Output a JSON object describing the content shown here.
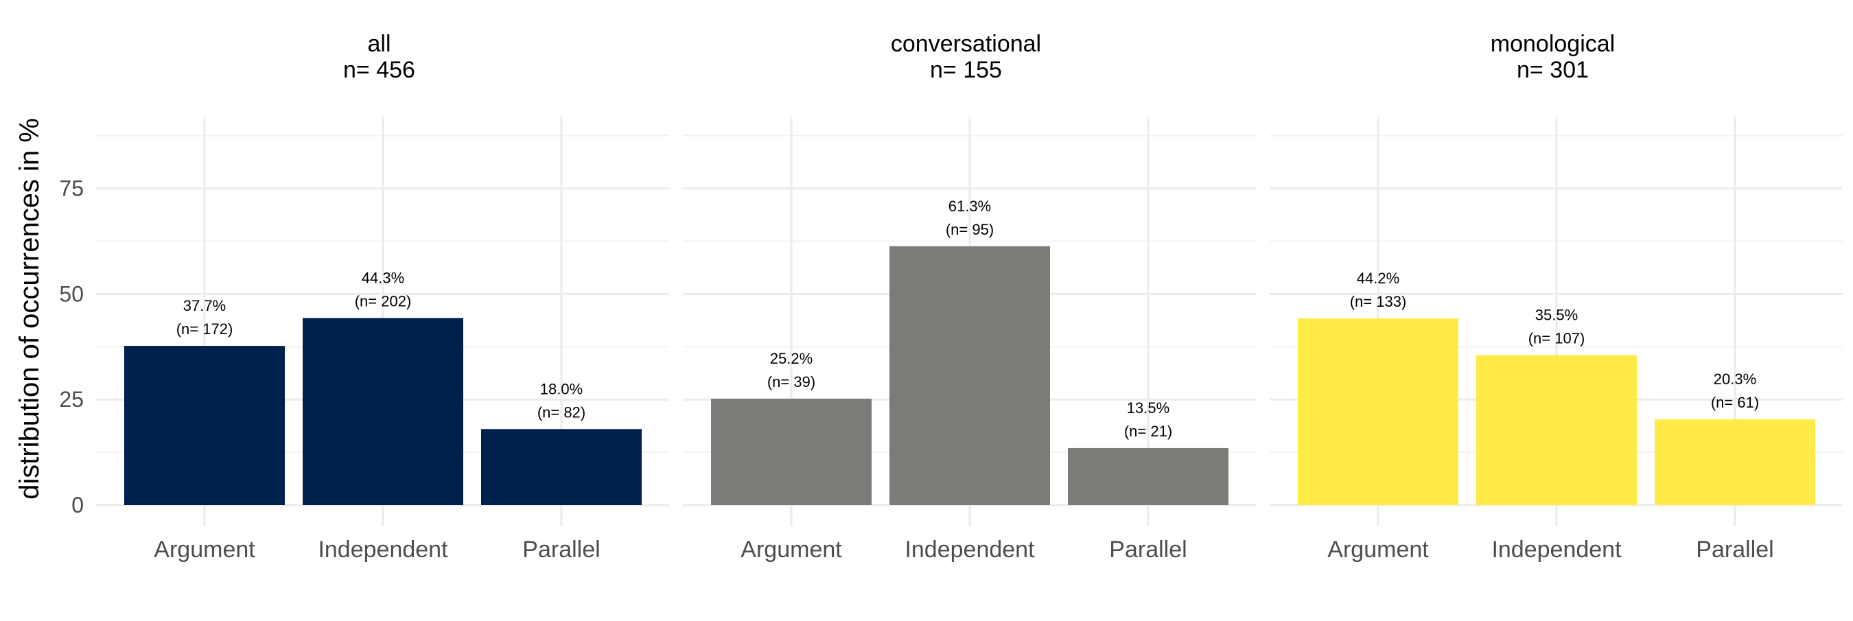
{
  "chart_data": {
    "type": "bar",
    "ylabel": "distribution of occurrences in %",
    "ylim": [
      0,
      92
    ],
    "y_ticks": [
      0,
      25,
      50,
      75
    ],
    "grid": true,
    "legend": "none",
    "categories": [
      "Argument",
      "Independent",
      "Parallel"
    ],
    "facets": [
      {
        "title_line1": "all",
        "title_line2": "n=  456",
        "color": "#00204D",
        "values": [
          37.7,
          44.3,
          18.0
        ],
        "labels_pct": [
          "37.7%",
          "44.3%",
          "18.0%"
        ],
        "labels_n": [
          "(n= 172)",
          "(n= 202)",
          "(n= 82)"
        ]
      },
      {
        "title_line1": "conversational",
        "title_line2": "n=  155",
        "color": "#7C7B78",
        "values": [
          25.2,
          61.3,
          13.5
        ],
        "labels_pct": [
          "25.2%",
          "61.3%",
          "13.5%"
        ],
        "labels_n": [
          "(n= 39)",
          "(n= 95)",
          "(n= 21)"
        ]
      },
      {
        "title_line1": "monological",
        "title_line2": "n=  301",
        "color": "#FFEA46",
        "values": [
          44.2,
          35.5,
          20.3
        ],
        "labels_pct": [
          "44.2%",
          "35.5%",
          "20.3%"
        ],
        "labels_n": [
          "(n= 133)",
          "(n= 107)",
          "(n= 61)"
        ]
      }
    ]
  }
}
